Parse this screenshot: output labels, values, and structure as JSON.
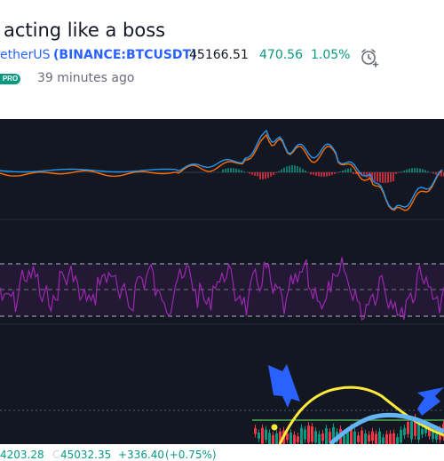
{
  "idea": {
    "title": "acting like a boss",
    "symbol_name": "etherUS",
    "symbol_exchange": "(BINANCE:BTCUSDT)",
    "price": "45166.51",
    "change": "470.56",
    "change_pct": "1.05%",
    "badge": "PRO",
    "published": "39 minutes ago"
  },
  "icons": {
    "alarm": "alarm-clock-plus-icon"
  },
  "legend": {
    "open": "4203.28",
    "close_key": "C",
    "close": "45032.35",
    "change": "+336.40",
    "change_pct": "(+0.75%)"
  },
  "colors": {
    "background": "#131722",
    "up": "#089981",
    "down": "#f23645",
    "link": "#2962ff",
    "oscillator": "#9c27b0",
    "macd_line": "#2196f3",
    "signal_line": "#ff6d00",
    "ma_yellow": "#ffeb3b",
    "ma_blue": "#64b5f6",
    "level_green": "#4caf50",
    "arrow": "#2962ff"
  }
}
